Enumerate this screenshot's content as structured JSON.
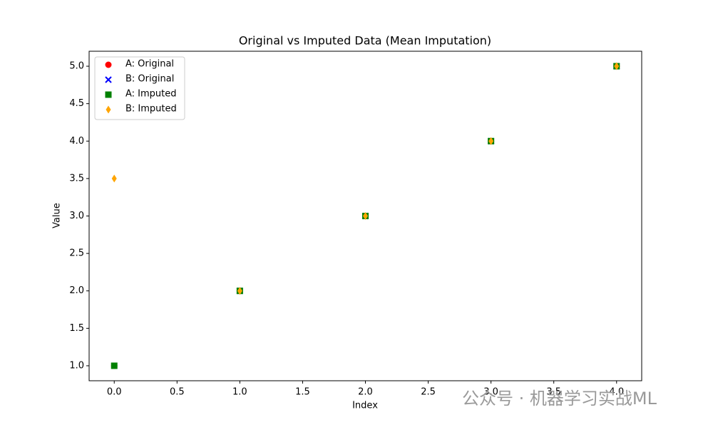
{
  "chart_data": {
    "type": "scatter",
    "title": "Original vs Imputed Data (Mean Imputation)",
    "x_label": "Index",
    "y_label": "Value",
    "x": [
      0,
      1,
      2,
      3,
      4
    ],
    "series": [
      {
        "name": "A: Original",
        "color": "#ff0000",
        "marker": "o",
        "values": [
          1,
          2,
          null,
          4,
          5
        ]
      },
      {
        "name": "B: Original",
        "color": "#0000ff",
        "marker": "x",
        "values": [
          null,
          2,
          3,
          4,
          5
        ]
      },
      {
        "name": "A: Imputed",
        "color": "#008000",
        "marker": "s",
        "values": [
          1,
          2,
          3,
          4,
          5
        ]
      },
      {
        "name": "B: Imputed",
        "color": "#ffa500",
        "marker": "d",
        "values": [
          3.5,
          2,
          3,
          4,
          5
        ]
      }
    ],
    "xlim": [
      -0.2,
      4.2
    ],
    "ylim": [
      0.8,
      5.2
    ],
    "xticks": [
      {
        "value": 0,
        "label": "0.0"
      },
      {
        "value": 0.5,
        "label": "0.5"
      },
      {
        "value": 1,
        "label": "1.0"
      },
      {
        "value": 1.5,
        "label": "1.5"
      },
      {
        "value": 2,
        "label": "2.0"
      },
      {
        "value": 2.5,
        "label": "2.5"
      },
      {
        "value": 3,
        "label": "3.0"
      },
      {
        "value": 3.5,
        "label": "3.5"
      },
      {
        "value": 4,
        "label": "4.0"
      }
    ],
    "yticks": [
      {
        "value": 1,
        "label": "1.0"
      },
      {
        "value": 1.5,
        "label": "1.5"
      },
      {
        "value": 2,
        "label": "2.0"
      },
      {
        "value": 2.5,
        "label": "2.5"
      },
      {
        "value": 3,
        "label": "3.0"
      },
      {
        "value": 3.5,
        "label": "3.5"
      },
      {
        "value": 4,
        "label": "4.0"
      },
      {
        "value": 4.5,
        "label": "4.5"
      },
      {
        "value": 5,
        "label": "5.0"
      }
    ],
    "legend": "upper left",
    "grid": false,
    "watermark": "公众号 · 机器学习实战ML"
  }
}
